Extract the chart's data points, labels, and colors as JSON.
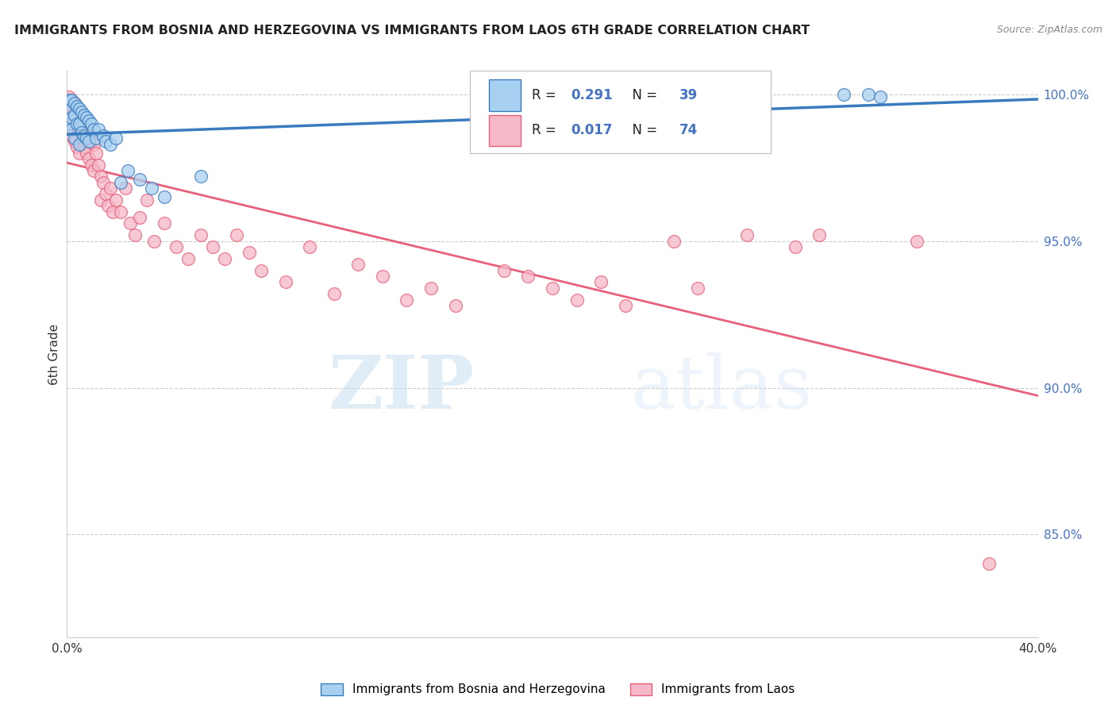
{
  "title": "IMMIGRANTS FROM BOSNIA AND HERZEGOVINA VS IMMIGRANTS FROM LAOS 6TH GRADE CORRELATION CHART",
  "source": "Source: ZipAtlas.com",
  "ylabel": "6th Grade",
  "legend_label_bosnia": "Immigrants from Bosnia and Herzegovina",
  "legend_label_laos": "Immigrants from Laos",
  "R_bosnia": 0.291,
  "N_bosnia": 39,
  "R_laos": 0.017,
  "N_laos": 74,
  "xlim": [
    0.0,
    0.4
  ],
  "ylim": [
    0.815,
    1.008
  ],
  "right_yticks": [
    1.0,
    0.95,
    0.9,
    0.85
  ],
  "right_yticklabels": [
    "100.0%",
    "95.0%",
    "90.0%",
    "85.0%"
  ],
  "xticks": [
    0.0,
    0.05,
    0.1,
    0.15,
    0.2,
    0.25,
    0.3,
    0.35,
    0.4
  ],
  "xticklabels": [
    "0.0%",
    "",
    "",
    "",
    "",
    "",
    "",
    "",
    "40.0%"
  ],
  "color_bosnia": "#a8d0f0",
  "color_laos": "#f4b8c8",
  "trendline_color_bosnia": "#3a7bbf",
  "trendline_color_laos": "#e8607a",
  "background_color": "#ffffff",
  "watermark_zip": "ZIP",
  "watermark_atlas": "atlas",
  "bosnia_x": [
    0.001,
    0.001,
    0.001,
    0.002,
    0.002,
    0.002,
    0.003,
    0.003,
    0.003,
    0.004,
    0.004,
    0.005,
    0.005,
    0.005,
    0.006,
    0.006,
    0.007,
    0.007,
    0.008,
    0.008,
    0.009,
    0.009,
    0.01,
    0.011,
    0.012,
    0.013,
    0.015,
    0.016,
    0.018,
    0.02,
    0.022,
    0.025,
    0.03,
    0.035,
    0.04,
    0.055,
    0.32,
    0.33,
    0.335
  ],
  "bosnia_y": [
    0.998,
    0.995,
    0.99,
    0.998,
    0.992,
    0.988,
    0.997,
    0.993,
    0.985,
    0.996,
    0.99,
    0.995,
    0.99,
    0.983,
    0.994,
    0.987,
    0.993,
    0.986,
    0.992,
    0.985,
    0.991,
    0.984,
    0.99,
    0.988,
    0.985,
    0.988,
    0.986,
    0.984,
    0.983,
    0.985,
    0.97,
    0.974,
    0.971,
    0.968,
    0.965,
    0.972,
    1.0,
    1.0,
    0.999
  ],
  "laos_x": [
    0.001,
    0.001,
    0.001,
    0.002,
    0.002,
    0.002,
    0.003,
    0.003,
    0.003,
    0.004,
    0.004,
    0.004,
    0.005,
    0.005,
    0.005,
    0.006,
    0.006,
    0.007,
    0.007,
    0.008,
    0.008,
    0.009,
    0.009,
    0.01,
    0.01,
    0.011,
    0.011,
    0.012,
    0.013,
    0.014,
    0.014,
    0.015,
    0.016,
    0.017,
    0.018,
    0.019,
    0.02,
    0.022,
    0.024,
    0.026,
    0.028,
    0.03,
    0.033,
    0.036,
    0.04,
    0.045,
    0.05,
    0.055,
    0.06,
    0.065,
    0.07,
    0.075,
    0.08,
    0.09,
    0.1,
    0.11,
    0.12,
    0.13,
    0.14,
    0.15,
    0.16,
    0.18,
    0.19,
    0.2,
    0.21,
    0.22,
    0.23,
    0.25,
    0.26,
    0.28,
    0.3,
    0.31,
    0.35,
    0.38
  ],
  "laos_y": [
    0.999,
    0.996,
    0.99,
    0.998,
    0.993,
    0.986,
    0.997,
    0.992,
    0.984,
    0.995,
    0.989,
    0.982,
    0.994,
    0.988,
    0.98,
    0.992,
    0.985,
    0.99,
    0.982,
    0.988,
    0.98,
    0.986,
    0.978,
    0.984,
    0.976,
    0.983,
    0.974,
    0.98,
    0.976,
    0.972,
    0.964,
    0.97,
    0.966,
    0.962,
    0.968,
    0.96,
    0.964,
    0.96,
    0.968,
    0.956,
    0.952,
    0.958,
    0.964,
    0.95,
    0.956,
    0.948,
    0.944,
    0.952,
    0.948,
    0.944,
    0.952,
    0.946,
    0.94,
    0.936,
    0.948,
    0.932,
    0.942,
    0.938,
    0.93,
    0.934,
    0.928,
    0.94,
    0.938,
    0.934,
    0.93,
    0.936,
    0.928,
    0.95,
    0.934,
    0.952,
    0.948,
    0.952,
    0.95,
    0.84
  ]
}
